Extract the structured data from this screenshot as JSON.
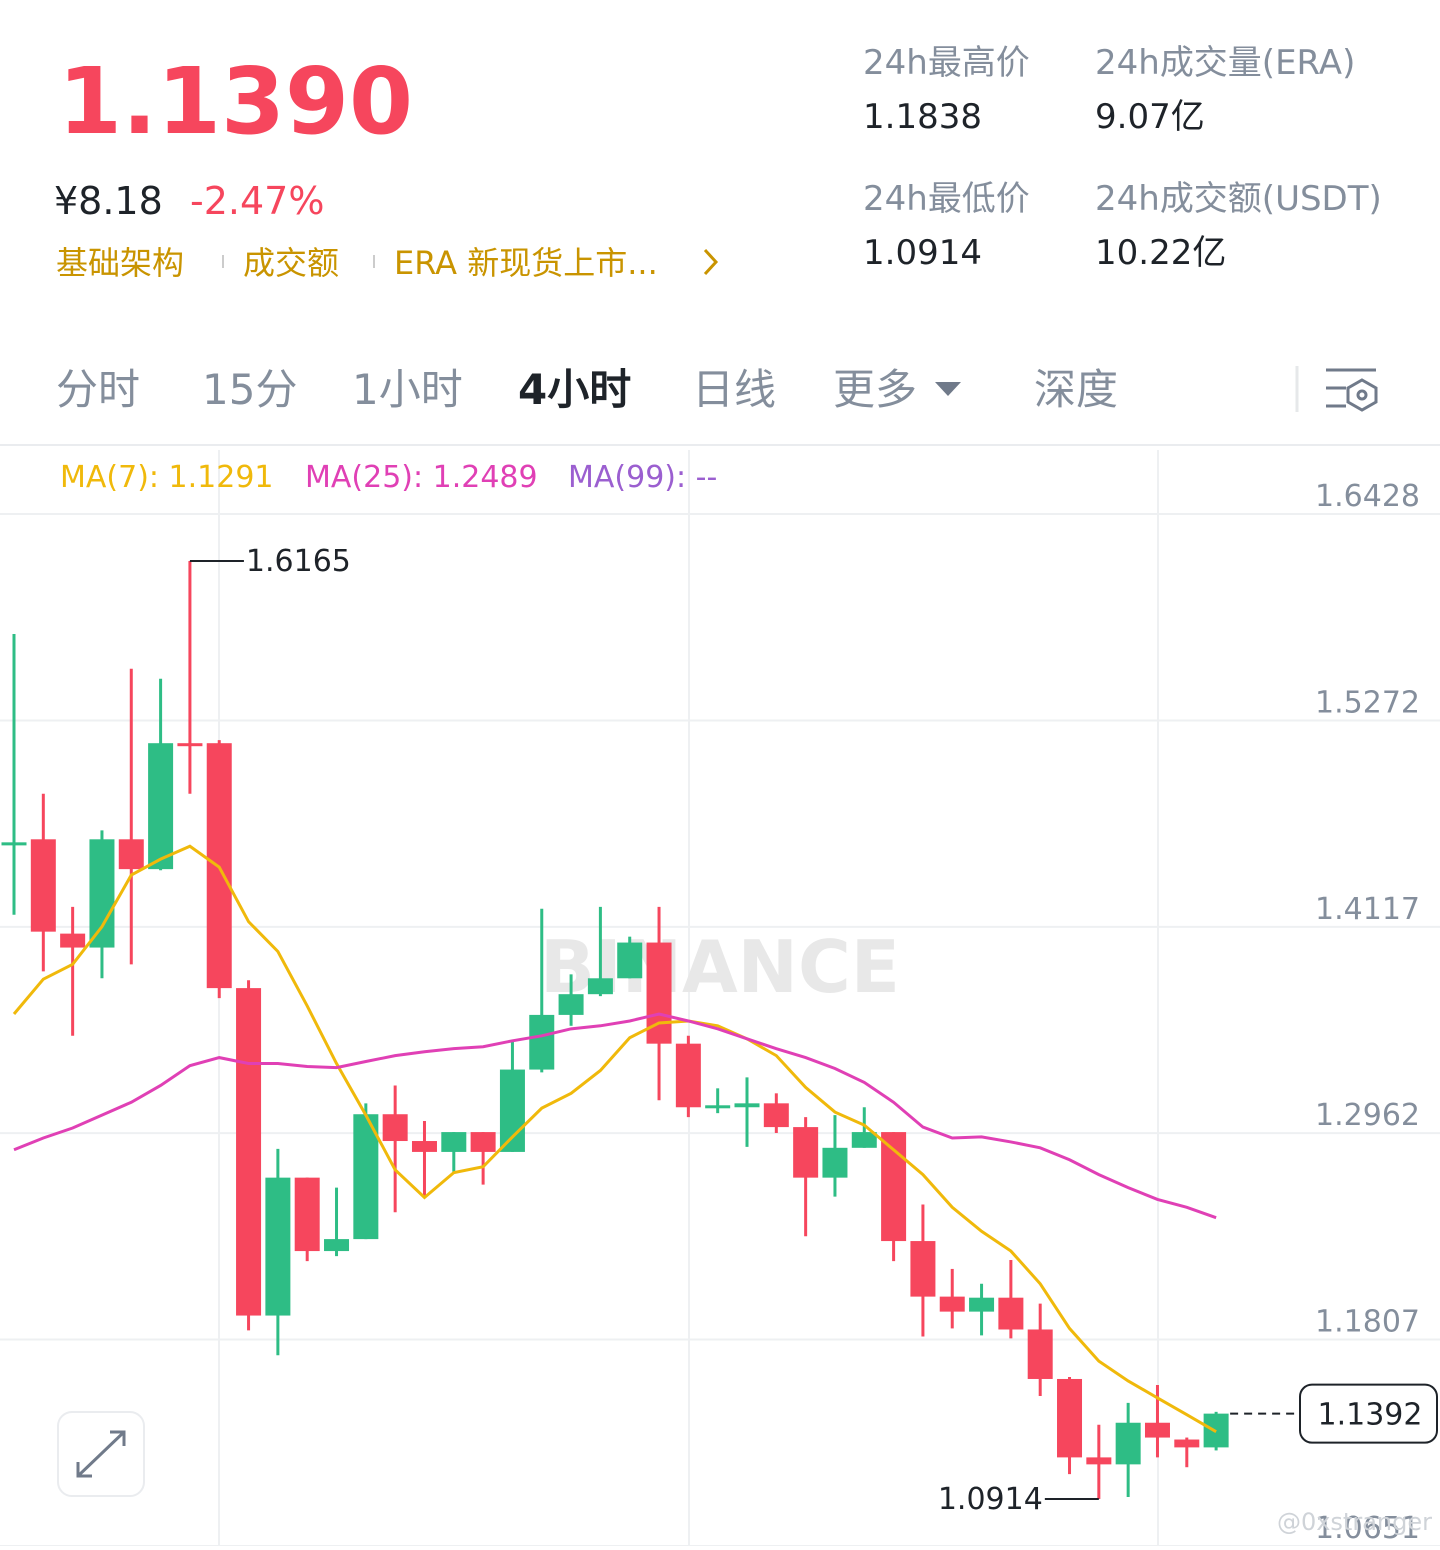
{
  "header": {
    "price": "1.1390",
    "fiat": "¥8.18",
    "change": "-2.47%",
    "tags": [
      "基础架构",
      "成交额",
      "ERA 新现货上市..."
    ],
    "stats": [
      {
        "label": "24h最高价",
        "value": "1.1838"
      },
      {
        "label": "24h成交量(ERA)",
        "value": "9.07亿"
      },
      {
        "label": "24h最低价",
        "value": "1.0914"
      },
      {
        "label": "24h成交额(USDT)",
        "value": "10.22亿"
      }
    ]
  },
  "tabs": {
    "items": [
      "分时",
      "15分",
      "1小时",
      "4小时",
      "日线",
      "更多",
      "深度"
    ],
    "active": 3
  },
  "watermark": "BINANCE",
  "credit": "@0xstranger",
  "chart_data": {
    "type": "candlestick",
    "up_color": "#2ebd85",
    "down_color": "#f6465d",
    "open": [
      1.4573,
      1.4607,
      1.4079,
      1.4001,
      1.4607,
      1.444,
      1.5145,
      1.5145,
      1.3774,
      1.1941,
      1.2713,
      1.2302,
      1.2369,
      1.3068,
      1.2918,
      1.2857,
      1.2968,
      1.2857,
      1.3318,
      1.3624,
      1.374,
      1.3829,
      1.4029,
      1.3463,
      1.3107,
      1.3107,
      1.3129,
      1.2996,
      1.2713,
      1.288,
      1.2968,
      1.2358,
      1.2047,
      1.1963,
      1.2041,
      1.1863,
      1.1586,
      1.1147,
      1.1108,
      1.1341,
      1.1247,
      1.1203
    ],
    "high": [
      1.5756,
      1.4862,
      1.4229,
      1.4657,
      1.5562,
      1.5506,
      1.6165,
      1.5162,
      1.3818,
      1.2874,
      1.2713,
      1.2657,
      1.3129,
      1.3229,
      1.303,
      1.2968,
      1.2968,
      1.3479,
      1.4218,
      1.3851,
      1.4229,
      1.4062,
      1.4229,
      1.3507,
      1.3213,
      1.3274,
      1.3185,
      1.3052,
      1.3063,
      1.3107,
      1.2968,
      1.2563,
      1.2202,
      1.2119,
      1.2252,
      1.2008,
      1.1597,
      1.133,
      1.1452,
      1.1552,
      1.1258,
      1.1402
    ],
    "low": [
      1.4185,
      1.3868,
      1.3507,
      1.3829,
      1.3907,
      1.4434,
      1.4862,
      1.3718,
      1.1858,
      1.1719,
      1.2246,
      1.2274,
      1.2369,
      1.2519,
      1.2602,
      1.2746,
      1.2674,
      1.2857,
      1.3302,
      1.3563,
      1.3729,
      1.3829,
      1.3146,
      1.3052,
      1.3074,
      1.2885,
      1.2963,
      1.2385,
      1.2607,
      1.288,
      1.2246,
      1.1824,
      1.1869,
      1.183,
      1.1813,
      1.1491,
      1.1053,
      1.0914,
      1.0925,
      1.1147,
      1.1092,
      1.1186
    ],
    "close": [
      1.459,
      1.409,
      1.4001,
      1.4607,
      1.444,
      1.5145,
      1.5129,
      1.3774,
      1.1941,
      1.2713,
      1.2302,
      1.2369,
      1.3068,
      1.2918,
      1.2857,
      1.2968,
      1.2857,
      1.3318,
      1.3624,
      1.374,
      1.3829,
      1.4029,
      1.3463,
      1.3107,
      1.3118,
      1.3129,
      1.2996,
      1.2713,
      1.288,
      1.2968,
      1.2358,
      1.2047,
      1.1963,
      1.2041,
      1.1863,
      1.1586,
      1.1147,
      1.1108,
      1.1341,
      1.1258,
      1.1203,
      1.1392
    ],
    "series": [
      {
        "name": "MA(7): 1.1291",
        "color": "#f0b90b",
        "values": [
          1.3629,
          1.3824,
          1.3907,
          1.4118,
          1.4407,
          1.4496,
          1.4568,
          1.4451,
          1.4146,
          1.3979,
          1.3674,
          1.3352,
          1.3063,
          1.2757,
          1.2602,
          1.2741,
          1.2774,
          1.2941,
          1.3102,
          1.3185,
          1.3313,
          1.3496,
          1.3579,
          1.359,
          1.3563,
          1.349,
          1.3396,
          1.3218,
          1.308,
          1.3007,
          1.2869,
          1.273,
          1.2547,
          1.2413,
          1.2302,
          1.2119,
          1.1869,
          1.1686,
          1.1575,
          1.148,
          1.1386,
          1.1291
        ]
      },
      {
        "name": "MA(25): 1.2489",
        "color": "#e040b5",
        "values": [
          1.2869,
          1.2935,
          1.2991,
          1.3063,
          1.3135,
          1.3229,
          1.334,
          1.3385,
          1.3352,
          1.3352,
          1.3335,
          1.3329,
          1.3363,
          1.3396,
          1.3418,
          1.3435,
          1.3446,
          1.3479,
          1.3507,
          1.3546,
          1.3563,
          1.359,
          1.3629,
          1.359,
          1.3546,
          1.349,
          1.3435,
          1.3385,
          1.3324,
          1.3246,
          1.3135,
          1.2996,
          1.2935,
          1.2941,
          1.2913,
          1.288,
          1.2813,
          1.273,
          1.2657,
          1.2591,
          1.2547,
          1.2489
        ]
      }
    ],
    "legend_extra": [
      {
        "name": "MA(99): --",
        "color": "#9b5fd0"
      }
    ],
    "ylim": [
      1.0651,
      1.6428
    ],
    "yticks": [
      1.6428,
      1.5272,
      1.4117,
      1.2962,
      1.1807,
      1.0651
    ]
  }
}
